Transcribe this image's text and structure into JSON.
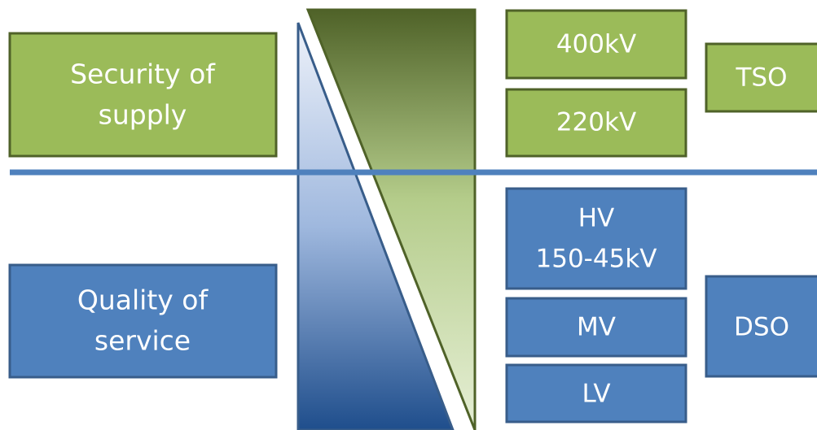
{
  "left": {
    "security": [
      "Security of",
      "supply"
    ],
    "quality": [
      "Quality of",
      "service"
    ]
  },
  "levels": {
    "kv400": "400kV",
    "kv220": "220kV",
    "hv": [
      "HV",
      "150-45kV"
    ],
    "mv": "MV",
    "lv": "LV"
  },
  "operators": {
    "tso": "TSO",
    "dso": "DSO"
  }
}
